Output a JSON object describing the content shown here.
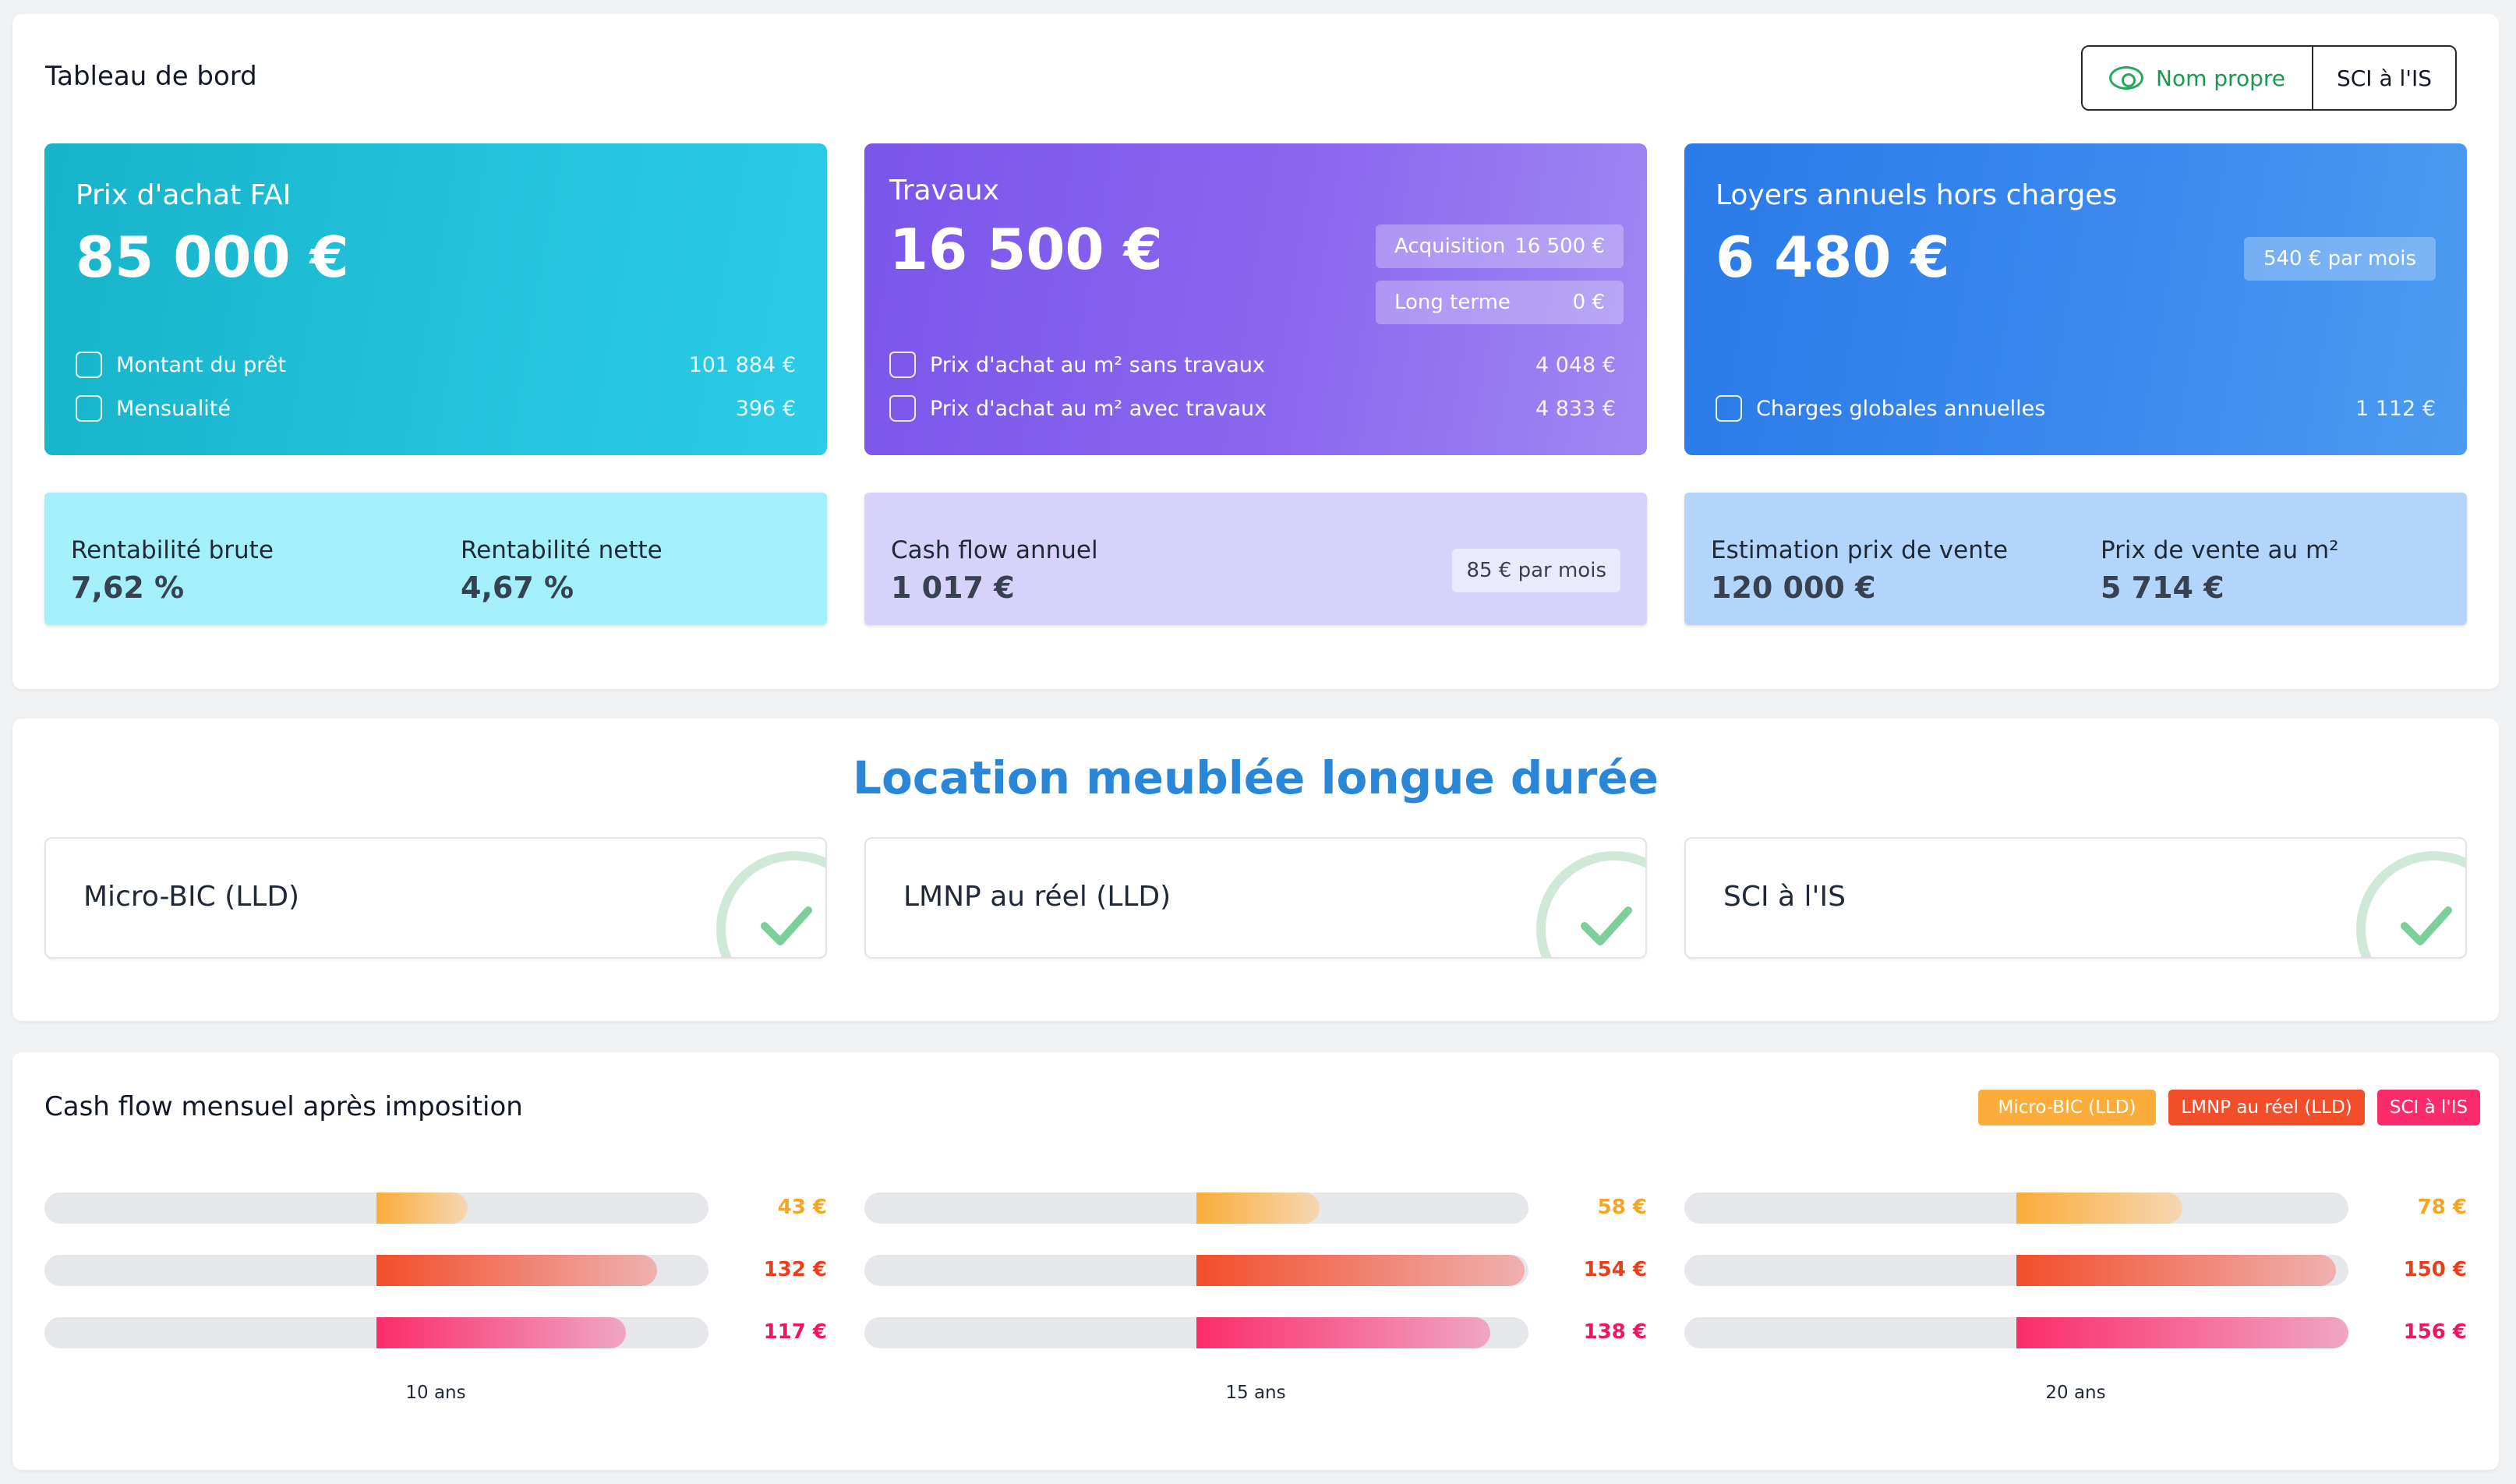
{
  "header": {
    "title": "Tableau de bord",
    "toggle": {
      "option1": "Nom propre",
      "option2": "SCI à l'IS",
      "selected": "Nom propre"
    }
  },
  "cards": {
    "achat": {
      "label": "Prix d'achat FAI",
      "value": "85 000 €",
      "rows": [
        {
          "label": "Montant du prêt",
          "value": "101 884 €",
          "icon": "loan-icon"
        },
        {
          "label": "Mensualité",
          "value": "396 €",
          "icon": "calendar-icon"
        }
      ]
    },
    "travaux": {
      "label": "Travaux",
      "value": "16 500 €",
      "pills": [
        {
          "label": "Acquisition",
          "value": "16 500 €"
        },
        {
          "label": "Long terme",
          "value": "0 €"
        }
      ],
      "rows": [
        {
          "label": "Prix d'achat au m² sans travaux",
          "value": "4 048 €",
          "icon": "home-icon"
        },
        {
          "label": "Prix d'achat au m² avec travaux",
          "value": "4 833 €",
          "icon": "home-icon"
        }
      ]
    },
    "loyers": {
      "label": "Loyers annuels hors charges",
      "value": "6 480 €",
      "pill": "540 €  par mois",
      "rows": [
        {
          "label": "Charges globales annuelles",
          "value": "1 112 €",
          "icon": "invoice-icon"
        }
      ]
    }
  },
  "stats": {
    "rentabilite": {
      "brute_label": "Rentabilité brute",
      "brute_value": "7,62 %",
      "nette_label": "Rentabilité nette",
      "nette_value": "4,67 %"
    },
    "cashflow": {
      "label": "Cash flow annuel",
      "value": "1 017 €",
      "pill": "85 € par mois"
    },
    "vente": {
      "estimation_label": "Estimation prix de vente",
      "estimation_value": "120 000 €",
      "m2_label": "Prix de vente au m²",
      "m2_value": "5 714 €"
    }
  },
  "regimes": {
    "title": "Location meublée longue durée",
    "items": [
      "Micro-BIC (LLD)",
      "LMNP au réel (LLD)",
      "SCI à l'IS"
    ]
  },
  "cashflow_chart": {
    "title": "Cash flow mensuel après imposition",
    "legend": [
      "Micro-BIC (LLD)",
      "LMNP au réel (LLD)",
      "SCI à l'IS"
    ]
  },
  "colors": {
    "micro_bic": "#fbac3a",
    "lmnp": "#f24e2a",
    "sci": "#fb2c6b",
    "title_blue": "#2a87d8"
  },
  "chart_data": {
    "type": "bar",
    "title": "Cash flow mensuel après imposition",
    "categories": [
      "10 ans",
      "15 ans",
      "20 ans"
    ],
    "series": [
      {
        "name": "Micro-BIC (LLD)",
        "values": [
          43,
          58,
          78
        ],
        "labels": [
          "43 €",
          "58 €",
          "78 €"
        ]
      },
      {
        "name": "LMNP au réel (LLD)",
        "values": [
          132,
          154,
          150
        ],
        "labels": [
          "132 €",
          "154 €",
          "150 €"
        ]
      },
      {
        "name": "SCI à l'IS",
        "values": [
          117,
          138,
          156
        ],
        "labels": [
          "117 €",
          "138 €",
          "156 €"
        ]
      }
    ],
    "ylim": [
      -156,
      156
    ],
    "legend": "top-right"
  }
}
